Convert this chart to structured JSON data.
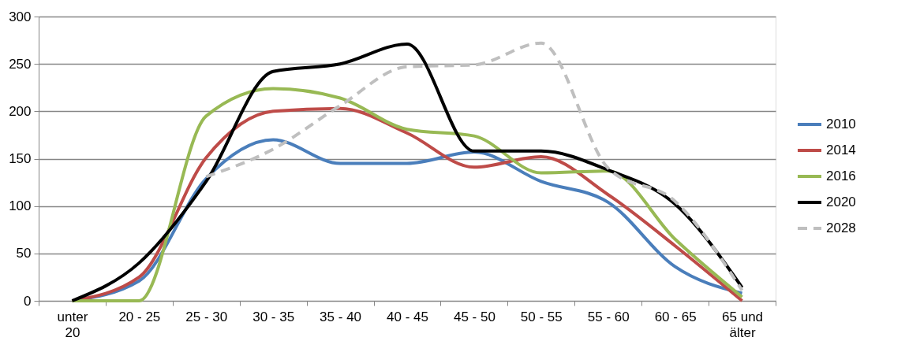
{
  "chart_data": {
    "type": "line",
    "categories": [
      "unter 20",
      "20 - 25",
      "25 - 30",
      "30 - 35",
      "35 - 40",
      "40 - 45",
      "45 - 50",
      "50 - 55",
      "55 - 60",
      "60 - 65",
      "65 und älter"
    ],
    "series": [
      {
        "name": "2010",
        "color": "#4a7ebb",
        "line_style": "solid",
        "values": [
          0,
          21,
          129,
          170,
          145,
          145,
          157,
          126,
          104,
          36,
          8
        ]
      },
      {
        "name": "2014",
        "color": "#be4b48",
        "line_style": "solid",
        "values": [
          0,
          25,
          151,
          200,
          203,
          177,
          141,
          152,
          112,
          58,
          0
        ]
      },
      {
        "name": "2016",
        "color": "#98b954",
        "line_style": "solid",
        "values": [
          0,
          0,
          195,
          224,
          214,
          181,
          174,
          135,
          137,
          65,
          4
        ]
      },
      {
        "name": "2020",
        "color": "#000000",
        "line_style": "solid",
        "values": [
          0,
          40,
          126,
          242,
          250,
          271,
          158,
          158,
          138,
          102,
          14
        ]
      },
      {
        "name": "2028",
        "color": "#bfbfbf",
        "line_style": "dashed",
        "values": [
          null,
          null,
          131,
          160,
          206,
          247,
          249,
          272,
          140,
          105,
          11
        ]
      }
    ],
    "ylim": [
      0,
      300
    ],
    "yticks": [
      0,
      50,
      100,
      150,
      200,
      250,
      300
    ],
    "grid": "y",
    "legend": "right",
    "marker": "none"
  }
}
